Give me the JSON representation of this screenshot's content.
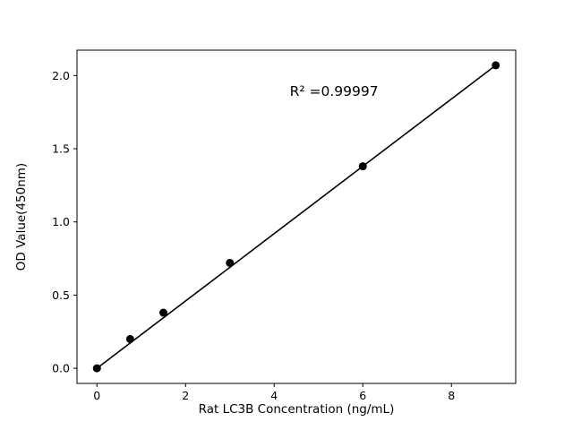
{
  "chart_data": {
    "type": "scatter",
    "title": "",
    "xlabel": "Rat LC3B Concentration (ng/mL)",
    "ylabel": "OD Value(450nm)",
    "x": [
      0,
      0.75,
      1.5,
      3,
      6,
      9
    ],
    "y": [
      0.0,
      0.2,
      0.38,
      0.72,
      1.38,
      2.07
    ],
    "fit_line": {
      "x": [
        0,
        9
      ],
      "y": [
        0.0,
        2.07
      ]
    },
    "annotation": "R² =0.99997",
    "annotation_pos": [
      4.35,
      1.86
    ],
    "xlim": [
      -0.45,
      9.45
    ],
    "ylim": [
      -0.1035,
      2.1735
    ],
    "x_ticks": [
      0,
      2,
      4,
      6,
      8
    ],
    "x_tick_labels": [
      "0",
      "2",
      "4",
      "6",
      "8"
    ],
    "y_ticks": [
      0.0,
      0.5,
      1.0,
      1.5,
      2.0
    ],
    "y_tick_labels": [
      "0.0",
      "0.5",
      "1.0",
      "1.5",
      "2.0"
    ],
    "grid": false,
    "legend": "none",
    "marker_color": "#000000",
    "line_color": "#000000",
    "background_color": "#ffffff"
  }
}
